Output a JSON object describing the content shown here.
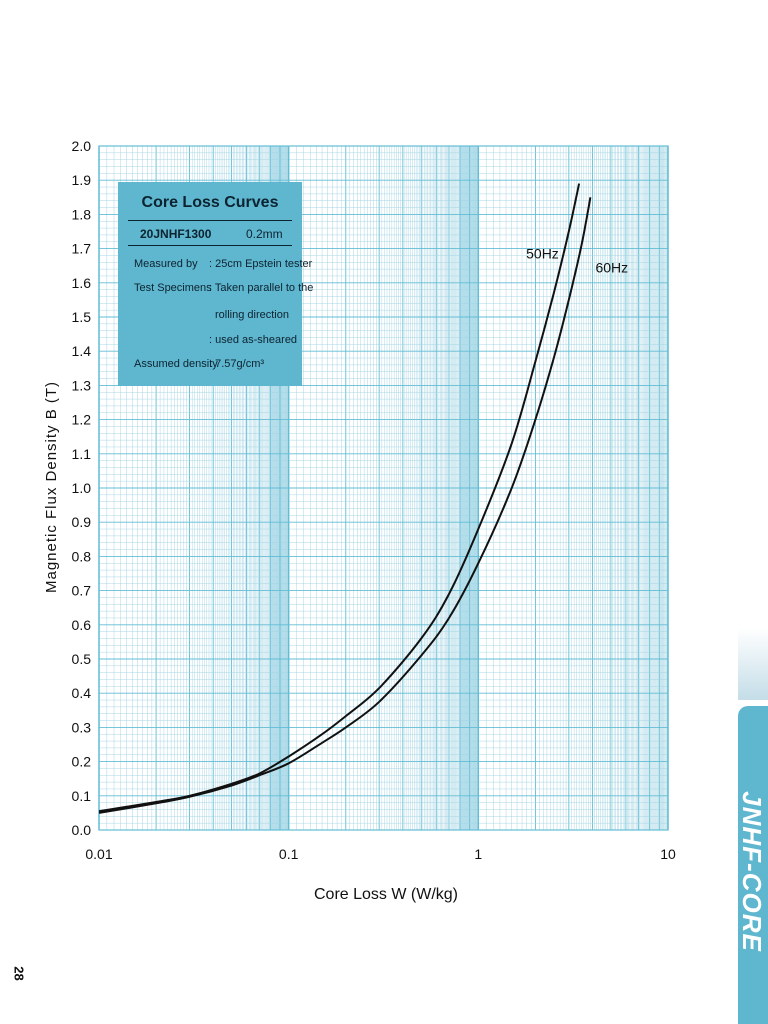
{
  "chart_data": {
    "type": "line",
    "xlabel": "Core Loss W (W/kg)",
    "ylabel": "Magnetic Flux Density B  (T)",
    "xscale": "log",
    "xlim": [
      0.01,
      10
    ],
    "ylim": [
      0.0,
      2.0
    ],
    "x_ticks": [
      "0.01",
      "0.1",
      "1",
      "10"
    ],
    "y_ticks": [
      "0.0",
      "0.1",
      "0.2",
      "0.3",
      "0.4",
      "0.5",
      "0.6",
      "0.7",
      "0.8",
      "0.9",
      "1.0",
      "1.1",
      "1.2",
      "1.3",
      "1.4",
      "1.5",
      "1.6",
      "1.7",
      "1.8",
      "1.9",
      "2.0"
    ],
    "grid": true,
    "series": [
      {
        "name": "50Hz",
        "x": [
          0.01,
          0.02,
          0.03,
          0.05,
          0.07,
          0.1,
          0.15,
          0.2,
          0.3,
          0.5,
          0.7,
          1.0,
          1.5,
          2.0,
          2.5,
          3.0,
          3.4
        ],
        "y": [
          0.055,
          0.082,
          0.1,
          0.135,
          0.165,
          0.215,
          0.28,
          0.333,
          0.415,
          0.56,
          0.69,
          0.88,
          1.13,
          1.37,
          1.57,
          1.75,
          1.89
        ]
      },
      {
        "name": "60Hz",
        "x": [
          0.01,
          0.02,
          0.03,
          0.05,
          0.07,
          0.1,
          0.15,
          0.2,
          0.3,
          0.5,
          0.7,
          1.0,
          1.5,
          2.0,
          2.5,
          3.0,
          3.5,
          3.9
        ],
        "y": [
          0.05,
          0.078,
          0.097,
          0.13,
          0.16,
          0.195,
          0.255,
          0.3,
          0.375,
          0.51,
          0.62,
          0.78,
          1.0,
          1.2,
          1.38,
          1.55,
          1.71,
          1.85
        ]
      }
    ]
  },
  "info_box": {
    "title": "Core Loss Curves",
    "grade": "20JNHF1300",
    "thickness": "0.2mm",
    "rows": [
      {
        "label": "Measured by",
        "value": ": 25cm Epstein tester"
      },
      {
        "label": "Test Specimens",
        "value": ": Taken parallel to the"
      },
      {
        "label": "",
        "value": "rolling direction"
      },
      {
        "label": "",
        "value": ": used as-sheared"
      },
      {
        "label": "Assumed density",
        "value": ": 7.57g/cm³"
      }
    ]
  },
  "brand": "JNHF-CORE",
  "page_number": "28",
  "colors": {
    "grid_light": "#9fd3e2",
    "grid_major": "#62bdd5",
    "band": "#c8e8f2",
    "box": "#5fb6cf",
    "curve": "#111111"
  }
}
